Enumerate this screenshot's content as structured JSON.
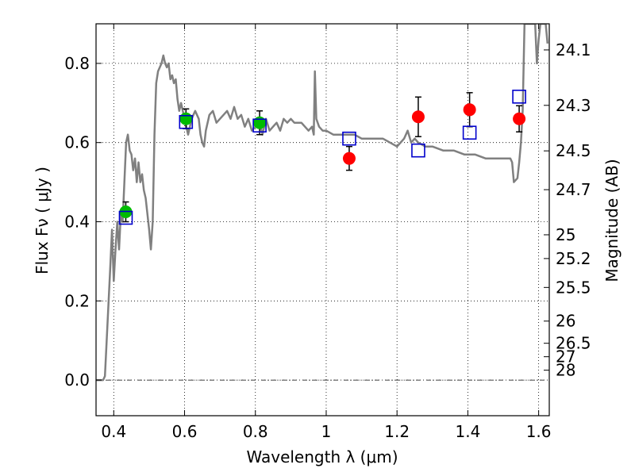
{
  "chart_data": {
    "type": "scatter",
    "title": "",
    "xlabel": "Wavelength  λ (μm)",
    "ylabel": "Flux  Fν  ( μJy )",
    "ylabel_right": "Magnitude (AB)",
    "xlim": [
      0.35,
      1.63
    ],
    "ylim": [
      -0.09,
      0.9
    ],
    "grid": true,
    "legend": "none",
    "colors": {
      "spectrum": "#808080",
      "green_points": "#00bb00",
      "red_points": "#ff0000",
      "model_squares": "#0000cc",
      "errorbar": "#000000"
    },
    "x_ticks": [
      {
        "value": 0.4,
        "label": "0.4"
      },
      {
        "value": 0.6,
        "label": "0.6"
      },
      {
        "value": 0.8,
        "label": "0.8"
      },
      {
        "value": 1.0,
        "label": "1"
      },
      {
        "value": 1.2,
        "label": "1.2"
      },
      {
        "value": 1.4,
        "label": "1.4"
      },
      {
        "value": 1.6,
        "label": "1.6"
      }
    ],
    "y_ticks": [
      {
        "value": 0.0,
        "label": "0.0"
      },
      {
        "value": 0.2,
        "label": "0.2"
      },
      {
        "value": 0.4,
        "label": "0.4"
      },
      {
        "value": 0.6,
        "label": "0.6"
      },
      {
        "value": 0.8,
        "label": "0.8"
      }
    ],
    "mag_ticks": [
      {
        "value": 0.834,
        "label": "24.1"
      },
      {
        "value": 0.694,
        "label": "24.3"
      },
      {
        "value": 0.579,
        "label": "24.5"
      },
      {
        "value": 0.481,
        "label": "24.7"
      },
      {
        "value": 0.367,
        "label": "25"
      },
      {
        "value": 0.307,
        "label": "25.2"
      },
      {
        "value": 0.234,
        "label": "25.5"
      },
      {
        "value": 0.149,
        "label": "26"
      },
      {
        "value": 0.093,
        "label": "26.5"
      },
      {
        "value": 0.059,
        "label": "27"
      },
      {
        "value": 0.025,
        "label": "28"
      }
    ],
    "series": [
      {
        "kind": "spectrum",
        "points": [
          [
            0.35,
            0.0
          ],
          [
            0.37,
            0.0
          ],
          [
            0.375,
            0.01
          ],
          [
            0.38,
            0.1
          ],
          [
            0.39,
            0.28
          ],
          [
            0.395,
            0.38
          ],
          [
            0.4,
            0.25
          ],
          [
            0.405,
            0.33
          ],
          [
            0.41,
            0.4
          ],
          [
            0.415,
            0.33
          ],
          [
            0.42,
            0.42
          ],
          [
            0.425,
            0.4
          ],
          [
            0.43,
            0.5
          ],
          [
            0.435,
            0.6
          ],
          [
            0.44,
            0.62
          ],
          [
            0.445,
            0.58
          ],
          [
            0.45,
            0.57
          ],
          [
            0.455,
            0.53
          ],
          [
            0.46,
            0.56
          ],
          [
            0.465,
            0.5
          ],
          [
            0.47,
            0.55
          ],
          [
            0.475,
            0.5
          ],
          [
            0.48,
            0.52
          ],
          [
            0.485,
            0.48
          ],
          [
            0.49,
            0.46
          ],
          [
            0.5,
            0.38
          ],
          [
            0.505,
            0.33
          ],
          [
            0.51,
            0.4
          ],
          [
            0.515,
            0.62
          ],
          [
            0.52,
            0.75
          ],
          [
            0.525,
            0.78
          ],
          [
            0.53,
            0.79
          ],
          [
            0.535,
            0.8
          ],
          [
            0.54,
            0.82
          ],
          [
            0.545,
            0.8
          ],
          [
            0.55,
            0.79
          ],
          [
            0.555,
            0.8
          ],
          [
            0.56,
            0.76
          ],
          [
            0.565,
            0.77
          ],
          [
            0.57,
            0.75
          ],
          [
            0.575,
            0.76
          ],
          [
            0.58,
            0.71
          ],
          [
            0.585,
            0.68
          ],
          [
            0.59,
            0.7
          ],
          [
            0.6,
            0.66
          ],
          [
            0.61,
            0.62
          ],
          [
            0.62,
            0.66
          ],
          [
            0.63,
            0.68
          ],
          [
            0.64,
            0.66
          ],
          [
            0.645,
            0.62
          ],
          [
            0.65,
            0.6
          ],
          [
            0.655,
            0.59
          ],
          [
            0.66,
            0.63
          ],
          [
            0.67,
            0.67
          ],
          [
            0.68,
            0.68
          ],
          [
            0.69,
            0.65
          ],
          [
            0.7,
            0.66
          ],
          [
            0.71,
            0.67
          ],
          [
            0.72,
            0.68
          ],
          [
            0.73,
            0.66
          ],
          [
            0.74,
            0.69
          ],
          [
            0.75,
            0.66
          ],
          [
            0.76,
            0.67
          ],
          [
            0.77,
            0.64
          ],
          [
            0.78,
            0.66
          ],
          [
            0.79,
            0.63
          ],
          [
            0.8,
            0.64
          ],
          [
            0.81,
            0.66
          ],
          [
            0.82,
            0.62
          ],
          [
            0.83,
            0.66
          ],
          [
            0.84,
            0.63
          ],
          [
            0.85,
            0.64
          ],
          [
            0.86,
            0.65
          ],
          [
            0.87,
            0.63
          ],
          [
            0.88,
            0.66
          ],
          [
            0.89,
            0.65
          ],
          [
            0.9,
            0.66
          ],
          [
            0.91,
            0.65
          ],
          [
            0.92,
            0.65
          ],
          [
            0.93,
            0.65
          ],
          [
            0.94,
            0.64
          ],
          [
            0.95,
            0.63
          ],
          [
            0.96,
            0.64
          ],
          [
            0.965,
            0.62
          ],
          [
            0.968,
            0.78
          ],
          [
            0.972,
            0.66
          ],
          [
            0.98,
            0.64
          ],
          [
            0.99,
            0.63
          ],
          [
            1.0,
            0.63
          ],
          [
            1.02,
            0.62
          ],
          [
            1.04,
            0.62
          ],
          [
            1.06,
            0.62
          ],
          [
            1.08,
            0.62
          ],
          [
            1.1,
            0.61
          ],
          [
            1.12,
            0.61
          ],
          [
            1.14,
            0.61
          ],
          [
            1.16,
            0.61
          ],
          [
            1.18,
            0.6
          ],
          [
            1.2,
            0.59
          ],
          [
            1.22,
            0.61
          ],
          [
            1.23,
            0.63
          ],
          [
            1.24,
            0.6
          ],
          [
            1.25,
            0.61
          ],
          [
            1.26,
            0.6
          ],
          [
            1.28,
            0.59
          ],
          [
            1.3,
            0.59
          ],
          [
            1.33,
            0.58
          ],
          [
            1.36,
            0.58
          ],
          [
            1.39,
            0.57
          ],
          [
            1.42,
            0.57
          ],
          [
            1.45,
            0.56
          ],
          [
            1.48,
            0.56
          ],
          [
            1.5,
            0.56
          ],
          [
            1.52,
            0.56
          ],
          [
            1.525,
            0.55
          ],
          [
            1.53,
            0.5
          ],
          [
            1.54,
            0.51
          ],
          [
            1.545,
            0.55
          ],
          [
            1.55,
            0.6
          ],
          [
            1.555,
            0.68
          ],
          [
            1.56,
            0.9
          ],
          [
            1.58,
            0.9
          ],
          [
            1.59,
            0.9
          ],
          [
            1.595,
            0.8
          ],
          [
            1.6,
            0.86
          ],
          [
            1.605,
            0.9
          ],
          [
            1.62,
            0.9
          ],
          [
            1.625,
            0.85
          ]
        ]
      },
      {
        "kind": "observed-green",
        "points": [
          {
            "x": 0.434,
            "y": 0.425,
            "err": 0.025
          },
          {
            "x": 0.604,
            "y": 0.66,
            "err": 0.025
          },
          {
            "x": 0.812,
            "y": 0.65,
            "err": 0.03
          }
        ]
      },
      {
        "kind": "observed-red",
        "points": [
          {
            "x": 1.065,
            "y": 0.56,
            "err": 0.03
          },
          {
            "x": 1.26,
            "y": 0.665,
            "err": 0.05
          },
          {
            "x": 1.405,
            "y": 0.683,
            "err": 0.043
          },
          {
            "x": 1.545,
            "y": 0.66,
            "err": 0.033
          }
        ]
      },
      {
        "kind": "model-squares",
        "points": [
          {
            "x": 0.434,
            "y": 0.41
          },
          {
            "x": 0.604,
            "y": 0.652
          },
          {
            "x": 0.812,
            "y": 0.643
          },
          {
            "x": 1.065,
            "y": 0.61
          },
          {
            "x": 1.26,
            "y": 0.58
          },
          {
            "x": 1.405,
            "y": 0.625
          },
          {
            "x": 1.545,
            "y": 0.716
          }
        ]
      }
    ]
  }
}
